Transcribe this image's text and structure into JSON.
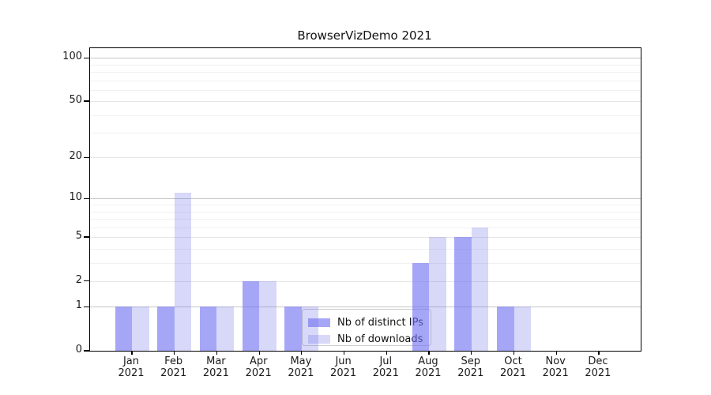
{
  "title": "BrowserVizDemo 2021",
  "chart_data": {
    "type": "bar",
    "title": "BrowserVizDemo 2021",
    "categories": [
      "Jan",
      "Feb",
      "Mar",
      "Apr",
      "May",
      "Jun",
      "Jul",
      "Aug",
      "Sep",
      "Oct",
      "Nov",
      "Dec"
    ],
    "category_year": "2021",
    "series": [
      {
        "name": "Nb of distinct IPs",
        "css": "rgba(111,111,242,0.62)",
        "hex_on_white": "#a6a6f7",
        "values": [
          1,
          1,
          1,
          2,
          1,
          0,
          0,
          3,
          5,
          1,
          0,
          0
        ]
      },
      {
        "name": "Nb of downloads",
        "css": "rgba(105,105,230,0.26)",
        "hex_on_white": "#d9d9f8",
        "values": [
          1,
          11,
          1,
          2,
          1,
          0,
          0,
          5,
          6,
          1,
          0,
          0
        ]
      }
    ],
    "xlabel": "",
    "ylabel": "",
    "y_scale": "log10(1+x)",
    "y_ticks": [
      0,
      1,
      2,
      5,
      10,
      20,
      50,
      100
    ],
    "y_minor_ticks": [
      3,
      4,
      6,
      7,
      8,
      9,
      30,
      40,
      60,
      70,
      80,
      90
    ],
    "ylim": [
      0,
      116
    ],
    "grid": "on",
    "legend_position": "lower center-right inside plot",
    "bar_edge_color": "none",
    "background": "#ffffff",
    "spine_color": "#000000",
    "gridline_decade_color": "#c6c6c6",
    "gridline_major_color": "#e6e6e6",
    "gridline_minor_color": "#f1f1f1"
  },
  "legend": {
    "items": [
      {
        "label": "Nb of distinct IPs"
      },
      {
        "label": "Nb of downloads"
      }
    ]
  }
}
